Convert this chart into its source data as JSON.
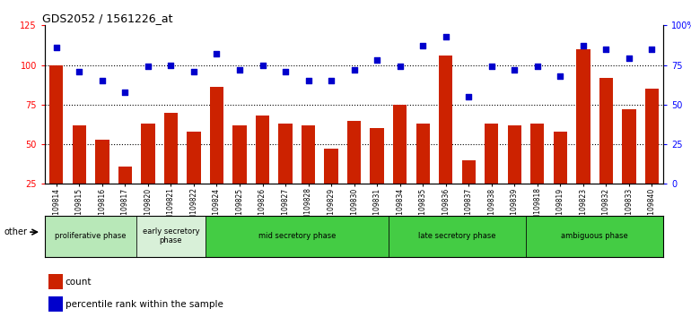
{
  "title": "GDS2052 / 1561226_at",
  "samples": [
    "GSM109814",
    "GSM109815",
    "GSM109816",
    "GSM109817",
    "GSM109820",
    "GSM109821",
    "GSM109822",
    "GSM109824",
    "GSM109825",
    "GSM109826",
    "GSM109827",
    "GSM109828",
    "GSM109829",
    "GSM109830",
    "GSM109831",
    "GSM109834",
    "GSM109835",
    "GSM109836",
    "GSM109837",
    "GSM109838",
    "GSM109839",
    "GSM109818",
    "GSM109819",
    "GSM109823",
    "GSM109832",
    "GSM109833",
    "GSM109840"
  ],
  "counts": [
    100,
    62,
    53,
    36,
    63,
    70,
    58,
    86,
    62,
    68,
    63,
    62,
    47,
    65,
    60,
    75,
    63,
    106,
    40,
    63,
    62,
    63,
    58,
    110,
    92,
    72,
    85
  ],
  "percentiles": [
    86,
    71,
    65,
    58,
    74,
    75,
    71,
    82,
    72,
    75,
    71,
    65,
    65,
    72,
    78,
    74,
    87,
    93,
    55,
    74,
    72,
    74,
    68,
    87,
    85,
    79,
    85
  ],
  "phase_display": [
    {
      "name": "proliferative phase",
      "start": 0,
      "end": 4,
      "color": "#b8e8b8"
    },
    {
      "name": "early secretory\nphase",
      "start": 4,
      "end": 7,
      "color": "#d8f0d8"
    },
    {
      "name": "mid secretory phase",
      "start": 7,
      "end": 15,
      "color": "#44cc44"
    },
    {
      "name": "late secretory phase",
      "start": 15,
      "end": 21,
      "color": "#44cc44"
    },
    {
      "name": "ambiguous phase",
      "start": 21,
      "end": 27,
      "color": "#44cc44"
    }
  ],
  "bar_color": "#cc2200",
  "dot_color": "#0000cc",
  "ylim_left": [
    25,
    125
  ],
  "ylim_right": [
    0,
    100
  ],
  "left_ticks": [
    25,
    50,
    75,
    100,
    125
  ],
  "right_ticks": [
    0,
    25,
    50,
    75,
    100
  ],
  "right_tick_labels": [
    "0",
    "25",
    "50",
    "75",
    "100%"
  ],
  "hlines": [
    50,
    75,
    100
  ],
  "bar_bottom": 25
}
